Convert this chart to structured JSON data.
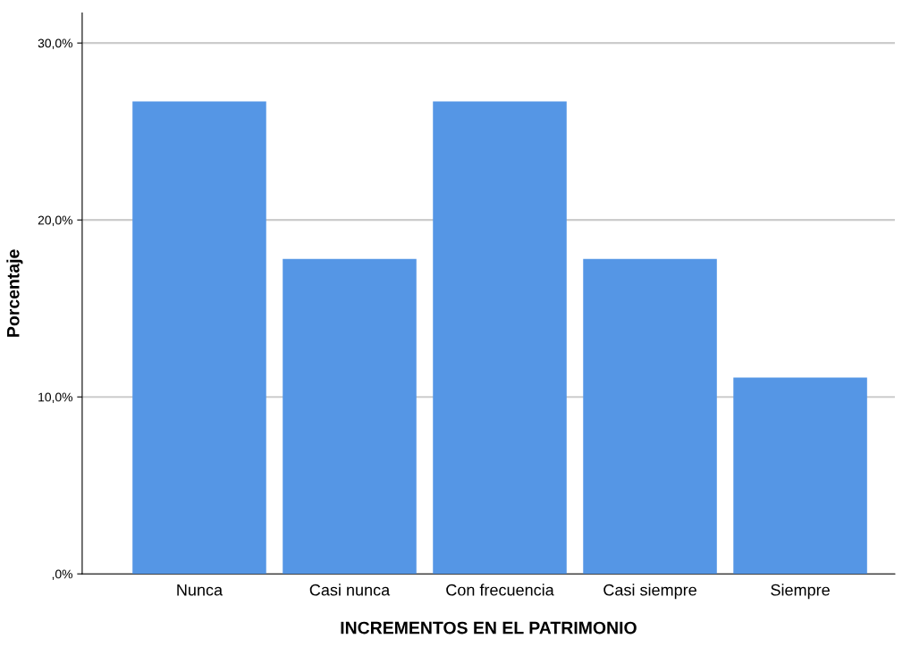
{
  "chart_data": {
    "type": "bar",
    "xlabel": "INCREMENTOS EN EL PATRIMONIO",
    "ylabel": "Porcentaje",
    "categories": [
      "Nunca",
      "Casi nunca",
      "Con frecuencia",
      "Casi siempre",
      "Siempre"
    ],
    "values": [
      26.7,
      17.8,
      26.7,
      17.8,
      11.1
    ],
    "color": "#5596e5",
    "ylim": [
      0,
      31.7
    ],
    "yticks": [
      {
        "value": 0,
        "label": ",0%"
      },
      {
        "value": 10,
        "label": "10,0%"
      },
      {
        "value": 20,
        "label": "20,0%"
      },
      {
        "value": 30,
        "label": "30,0%"
      }
    ],
    "grid": "y"
  }
}
